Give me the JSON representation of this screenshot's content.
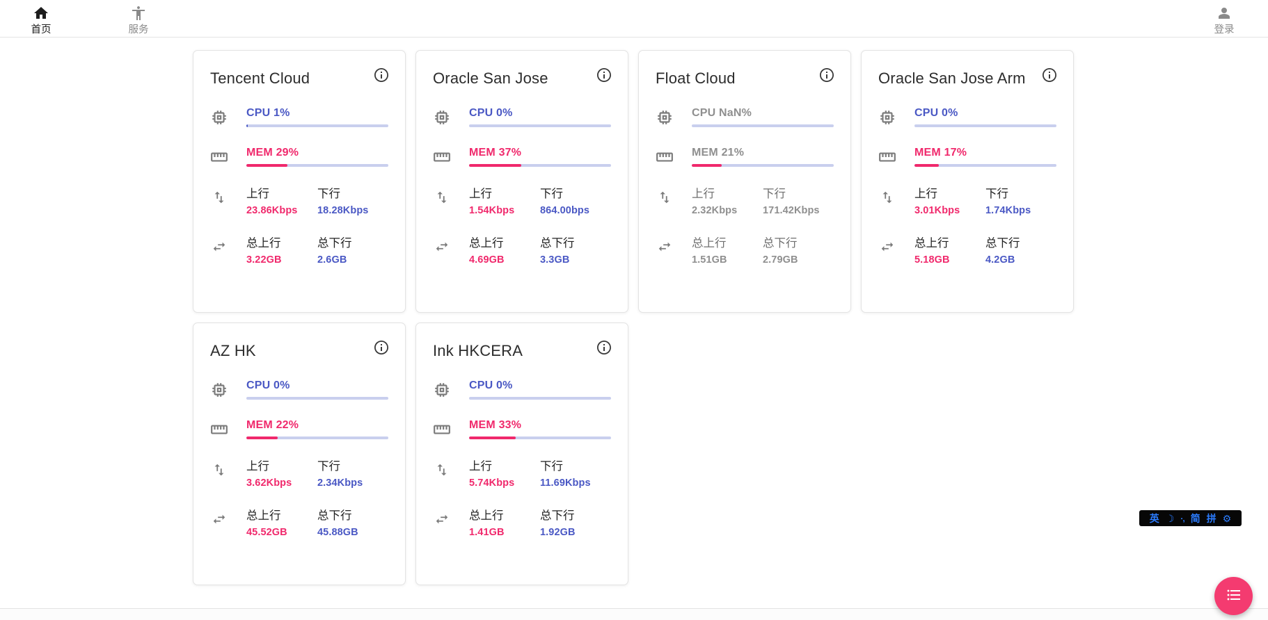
{
  "nav": {
    "home": {
      "label": "首页"
    },
    "services": {
      "label": "服务"
    },
    "login": {
      "label": "登录"
    }
  },
  "labels": {
    "up": "上行",
    "down": "下行",
    "total_up": "总上行",
    "total_down": "总下行"
  },
  "servers": [
    {
      "name": "Tencent Cloud",
      "cpu_label": "CPU 1%",
      "cpu_pct": 1,
      "mem_label": "MEM 29%",
      "mem_pct": 29,
      "up_value": "23.86Kbps",
      "down_value": "18.28Kbps",
      "total_up_value": "3.22GB",
      "total_down_value": "2.6GB",
      "offline": false
    },
    {
      "name": "Oracle San Jose",
      "cpu_label": "CPU 0%",
      "cpu_pct": 0,
      "mem_label": "MEM 37%",
      "mem_pct": 37,
      "up_value": "1.54Kbps",
      "down_value": "864.00bps",
      "total_up_value": "4.69GB",
      "total_down_value": "3.3GB",
      "offline": false
    },
    {
      "name": "Float Cloud",
      "cpu_label": "CPU NaN%",
      "cpu_pct": 0,
      "mem_label": "MEM 21%",
      "mem_pct": 21,
      "up_value": "2.32Kbps",
      "down_value": "171.42Kbps",
      "total_up_value": "1.51GB",
      "total_down_value": "2.79GB",
      "offline": true
    },
    {
      "name": "Oracle San Jose Arm",
      "cpu_label": "CPU 0%",
      "cpu_pct": 0,
      "mem_label": "MEM 17%",
      "mem_pct": 17,
      "up_value": "3.01Kbps",
      "down_value": "1.74Kbps",
      "total_up_value": "5.18GB",
      "total_down_value": "4.2GB",
      "offline": false
    },
    {
      "name": "AZ HK",
      "cpu_label": "CPU 0%",
      "cpu_pct": 0,
      "mem_label": "MEM 22%",
      "mem_pct": 22,
      "up_value": "3.62Kbps",
      "down_value": "2.34Kbps",
      "total_up_value": "45.52GB",
      "total_down_value": "45.88GB",
      "offline": false
    },
    {
      "name": "Ink HKCERA",
      "cpu_label": "CPU 0%",
      "cpu_pct": 0,
      "mem_label": "MEM 33%",
      "mem_pct": 33,
      "up_value": "5.74Kbps",
      "down_value": "11.69Kbps",
      "total_up_value": "1.41GB",
      "total_down_value": "1.92GB",
      "offline": false
    }
  ],
  "ime": {
    "items": [
      "英",
      "☽",
      "·,",
      "简",
      "拼",
      "⚙"
    ]
  },
  "colors": {
    "accent_blue": "#4a58c4",
    "accent_pink": "#f0296c",
    "track_lavender": "#c9cfee",
    "offline_gray": "#8f8f8f",
    "fab_pink": "#f43b70",
    "ime_blue": "#2b7cff"
  }
}
